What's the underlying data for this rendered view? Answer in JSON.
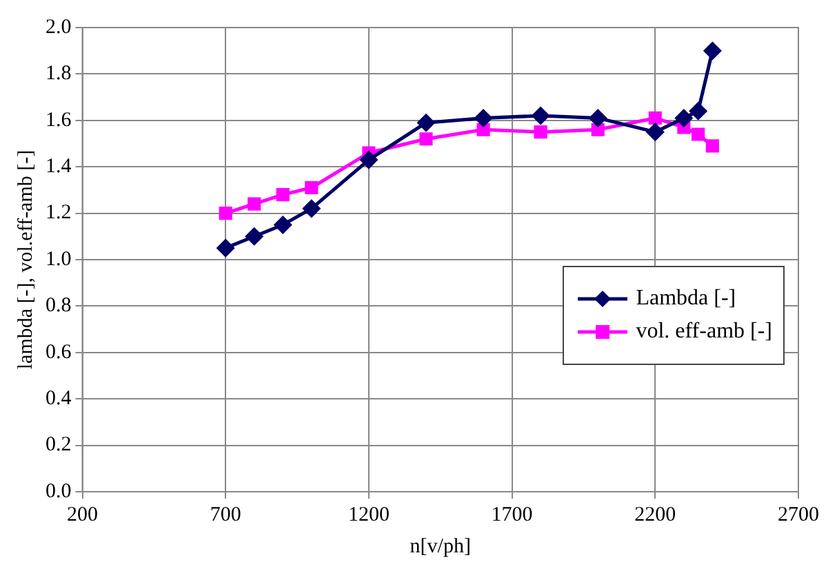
{
  "chart_data": {
    "type": "line",
    "xlabel": "n[v/ph]",
    "ylabel": "lambda [-], vol.eff-amb [-]",
    "xlim": [
      200,
      2700
    ],
    "xticks": [
      200,
      700,
      1200,
      1700,
      2200,
      2700
    ],
    "ylim": [
      0,
      2
    ],
    "yticks": [
      {
        "value": 0,
        "label": "0.0"
      },
      {
        "value": 0.2,
        "label": "0.2"
      },
      {
        "value": 0.4,
        "label": "0.4"
      },
      {
        "value": 0.6,
        "label": "0.6"
      },
      {
        "value": 0.8,
        "label": "0.8"
      },
      {
        "value": 1,
        "label": "1.0"
      },
      {
        "value": 1.2,
        "label": "1.2"
      },
      {
        "value": 1.4,
        "label": "1.4"
      },
      {
        "value": 1.6,
        "label": "1.6"
      },
      {
        "value": 1.8,
        "label": "1.8"
      },
      {
        "value": 2,
        "label": "2.0"
      }
    ],
    "grid": true,
    "legend": "right",
    "line_style": "solid",
    "series": [
      {
        "name": "Lambda [-]",
        "color": "#000066",
        "marker": "diamond",
        "x": [
          700,
          800,
          900,
          1000,
          1200,
          1400,
          1600,
          1800,
          2000,
          2200,
          2300,
          2350,
          2400
        ],
        "values": [
          1.05,
          1.1,
          1.15,
          1.22,
          1.43,
          1.59,
          1.61,
          1.62,
          1.61,
          1.55,
          1.61,
          1.64,
          1.9
        ]
      },
      {
        "name": "vol. eff-amb [-]",
        "color": "#ff00ff",
        "marker": "square",
        "x": [
          700,
          800,
          900,
          1000,
          1200,
          1400,
          1600,
          1800,
          2000,
          2200,
          2300,
          2350,
          2400
        ],
        "values": [
          1.2,
          1.24,
          1.28,
          1.31,
          1.46,
          1.52,
          1.56,
          1.55,
          1.56,
          1.61,
          1.57,
          1.54,
          1.49
        ]
      }
    ]
  }
}
